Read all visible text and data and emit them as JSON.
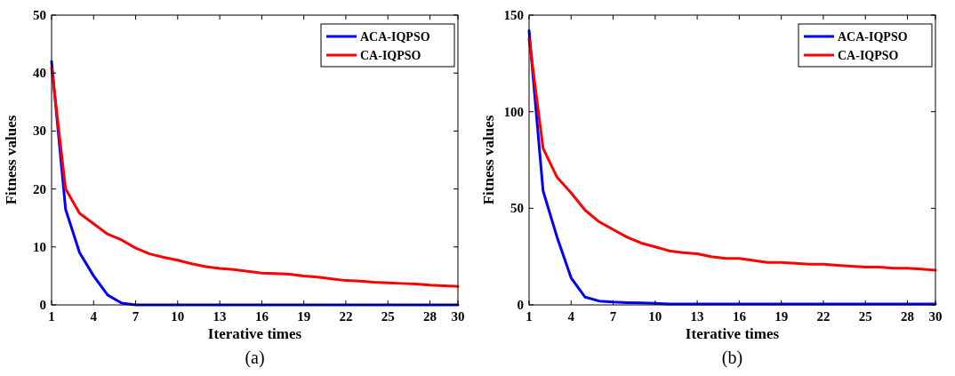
{
  "chart_data": [
    {
      "type": "line",
      "xlabel": "Iterative times",
      "ylabel": "Fitness values",
      "annotations": [
        "(a)"
      ],
      "x": [
        1,
        2,
        3,
        4,
        5,
        6,
        7,
        8,
        9,
        10,
        11,
        12,
        13,
        14,
        15,
        16,
        17,
        18,
        19,
        20,
        21,
        22,
        23,
        24,
        25,
        26,
        27,
        28,
        29,
        30
      ],
      "xlim": [
        1,
        30
      ],
      "xticks": [
        1,
        4,
        7,
        10,
        13,
        16,
        19,
        22,
        25,
        28,
        30
      ],
      "ylim": [
        0,
        50
      ],
      "yticks": [
        0,
        10,
        20,
        30,
        40,
        50
      ],
      "legend": "top right",
      "grid": false,
      "marker": "none",
      "line_style": "solid",
      "series": [
        {
          "name": "ACA-IQPSO",
          "color": "#0000ff",
          "values": [
            42,
            16.5,
            9,
            5,
            1.7,
            0.3,
            0,
            0,
            0,
            0,
            0,
            0,
            0,
            0,
            0,
            0,
            0,
            0,
            0,
            0,
            0,
            0,
            0,
            0,
            0,
            0,
            0,
            0,
            0,
            0
          ]
        },
        {
          "name": "CA-IQPSO",
          "color": "#ff0000",
          "values": [
            41,
            20,
            15.8,
            14,
            12.2,
            11.2,
            9.8,
            8.8,
            8.2,
            7.7,
            7.1,
            6.6,
            6.3,
            6.1,
            5.8,
            5.5,
            5.4,
            5.3,
            5,
            4.8,
            4.5,
            4.2,
            4.1,
            3.9,
            3.8,
            3.7,
            3.6,
            3.4,
            3.3,
            3.2
          ]
        }
      ]
    },
    {
      "type": "line",
      "xlabel": "Iterative times",
      "ylabel": "Fitness values",
      "annotations": [
        "(b)"
      ],
      "x": [
        1,
        2,
        3,
        4,
        5,
        6,
        7,
        8,
        9,
        10,
        11,
        12,
        13,
        14,
        15,
        16,
        17,
        18,
        19,
        20,
        21,
        22,
        23,
        24,
        25,
        26,
        27,
        28,
        29,
        30
      ],
      "xlim": [
        1,
        30
      ],
      "xticks": [
        1,
        4,
        7,
        10,
        13,
        16,
        19,
        22,
        25,
        28,
        30
      ],
      "ylim": [
        0,
        150
      ],
      "yticks": [
        0,
        50,
        100,
        150
      ],
      "legend": "top right",
      "grid": false,
      "marker": "none",
      "line_style": "solid",
      "series": [
        {
          "name": "ACA-IQPSO",
          "color": "#0000ff",
          "values": [
            142,
            59,
            35,
            14,
            4,
            2,
            1.5,
            1.2,
            1,
            0.8,
            0.5,
            0.5,
            0.5,
            0.5,
            0.5,
            0.5,
            0.5,
            0.5,
            0.5,
            0.5,
            0.5,
            0.5,
            0.5,
            0.5,
            0.5,
            0.5,
            0.5,
            0.5,
            0.5,
            0.5
          ]
        },
        {
          "name": "CA-IQPSO",
          "color": "#ff0000",
          "values": [
            138,
            81,
            66,
            58,
            49,
            43,
            39,
            35,
            32,
            30,
            28,
            27,
            26.5,
            25,
            24,
            24,
            23,
            22,
            22,
            21.5,
            21,
            21,
            20.5,
            20,
            19.5,
            19.5,
            19,
            19,
            18.5,
            18
          ]
        }
      ]
    }
  ]
}
